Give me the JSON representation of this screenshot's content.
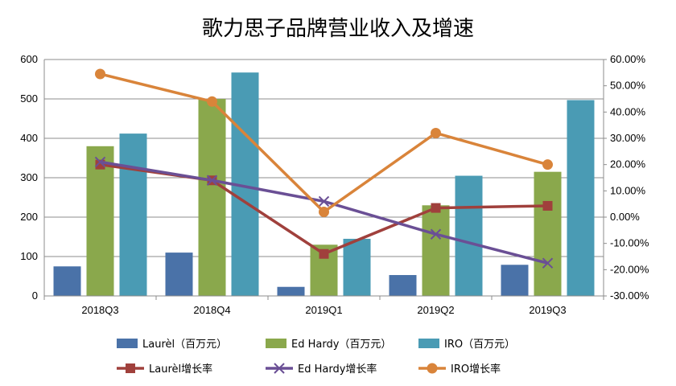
{
  "chart_data": {
    "type": "bar+line",
    "title": "歌力思子品牌营业收入及增速",
    "categories": [
      "2018Q3",
      "2018Q4",
      "2019Q1",
      "2019Q2",
      "2019Q3"
    ],
    "left_axis": {
      "min": 0,
      "max": 600,
      "ticks": [
        "0",
        "100",
        "200",
        "300",
        "400",
        "500",
        "600"
      ]
    },
    "right_axis": {
      "min": -0.3,
      "max": 0.6,
      "ticks": [
        "-30.00%",
        "-20.00%",
        "-10.00%",
        "0.00%",
        "10.00%",
        "20.00%",
        "30.00%",
        "40.00%",
        "50.00%",
        "60.00%"
      ]
    },
    "grid": true,
    "legend_position": "bottom",
    "bar_series": [
      {
        "name": "Laurèl（百万元）",
        "color": "#4a72a8",
        "values": [
          75,
          110,
          23,
          53,
          79
        ]
      },
      {
        "name": "Ed Hardy（百万元）",
        "color": "#8aa84c",
        "values": [
          380,
          500,
          130,
          230,
          315
        ]
      },
      {
        "name": "IRO（百万元）",
        "color": "#4a9bb4",
        "values": [
          412,
          567,
          145,
          305,
          497
        ]
      }
    ],
    "line_series": [
      {
        "name": "Laurèl增长率",
        "color": "#a0403c",
        "marker": "square",
        "values": [
          0.2,
          0.14,
          -0.14,
          0.035,
          0.043
        ]
      },
      {
        "name": "Ed Hardy增长率",
        "color": "#6a4f95",
        "marker": "x",
        "values": [
          0.21,
          0.14,
          0.06,
          -0.065,
          -0.175
        ]
      },
      {
        "name": "IRO增长率",
        "color": "#d9843a",
        "marker": "circle",
        "values": [
          0.545,
          0.44,
          0.02,
          0.32,
          0.2
        ]
      }
    ]
  }
}
